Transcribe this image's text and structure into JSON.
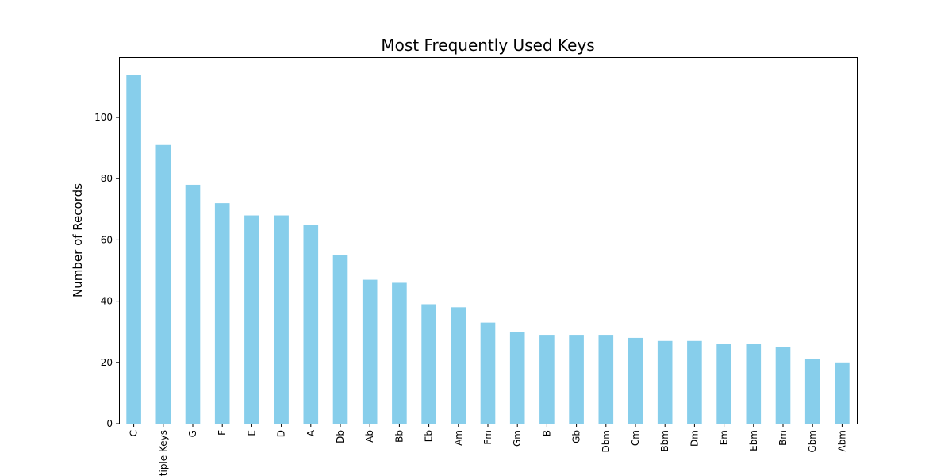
{
  "chart_data": {
    "type": "bar",
    "title": "Most Frequently Used Keys",
    "xlabel": "",
    "ylabel": "Number of Records",
    "categories": [
      "C",
      "Multiple Keys",
      "G",
      "F",
      "E",
      "D",
      "A",
      "Db",
      "Ab",
      "Bb",
      "Eb",
      "Am",
      "Fm",
      "Gm",
      "B",
      "Gb",
      "Dbm",
      "Cm",
      "Bbm",
      "Dm",
      "Em",
      "Ebm",
      "Bm",
      "Gbm",
      "Abm"
    ],
    "values": [
      114,
      91,
      78,
      72,
      68,
      68,
      65,
      55,
      47,
      46,
      39,
      38,
      33,
      30,
      29,
      29,
      29,
      28,
      27,
      27,
      26,
      26,
      25,
      21,
      20
    ],
    "ylim": [
      0,
      119.7
    ],
    "yticks": [
      0,
      20,
      40,
      60,
      80,
      100
    ],
    "grid": false,
    "bar_color": "#87ceeb"
  }
}
